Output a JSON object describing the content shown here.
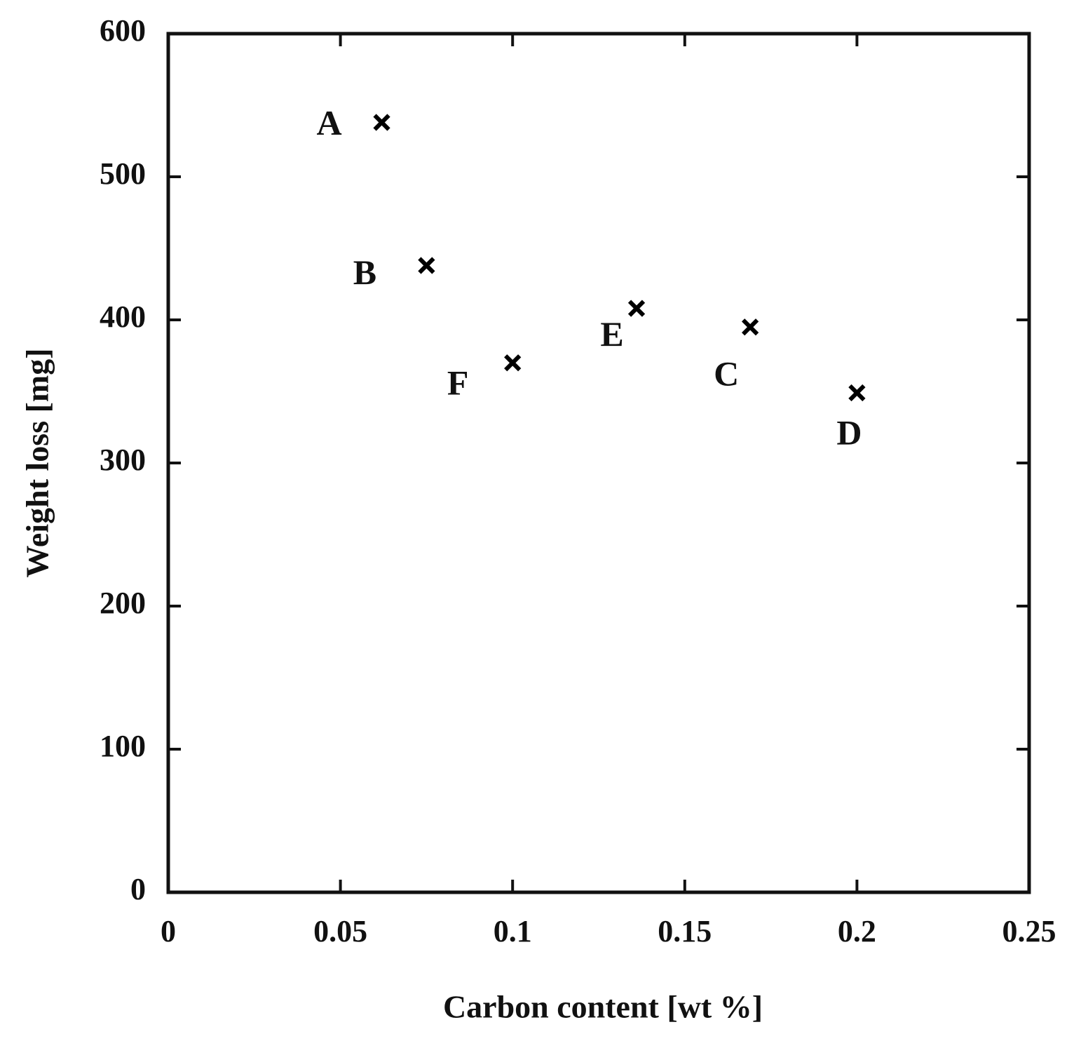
{
  "chart_data": {
    "type": "scatter",
    "x_label": "Carbon content [wt %]",
    "y_label": "Weight loss [mg]",
    "series": [
      {
        "color": "#000000",
        "x": [
          0.062,
          0.075,
          0.1,
          0.136,
          0.169,
          0.2
        ],
        "values": [
          538,
          438,
          370,
          408,
          395,
          349
        ],
        "point_labels": [
          "A",
          "B",
          "F",
          "E",
          "C",
          "D"
        ]
      }
    ],
    "xlim": [
      0,
      0.25
    ],
    "xticks": [
      0,
      0.05,
      0.1,
      0.15,
      0.2,
      0.25
    ],
    "ylim": [
      0,
      600
    ],
    "yticks": [
      0,
      100,
      200,
      300,
      400,
      500,
      600
    ],
    "grid": false
  }
}
